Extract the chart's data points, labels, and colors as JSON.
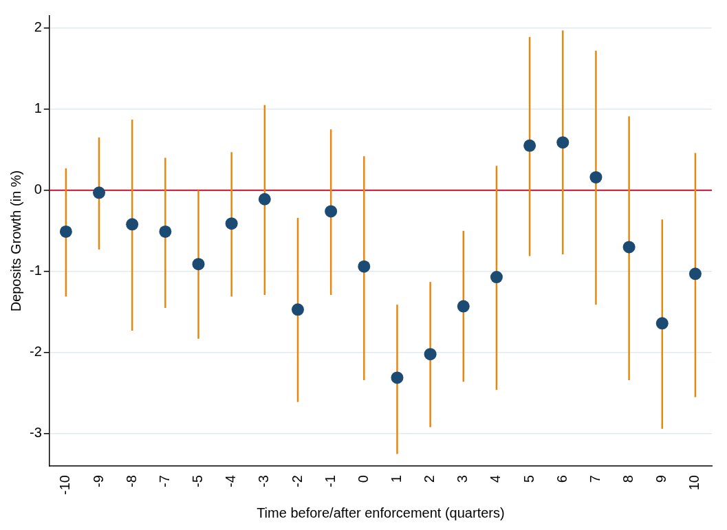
{
  "chart_data": {
    "type": "scatter",
    "xlabel": "Time before/after enforcement (quarters)",
    "ylabel": "Deposits Growth (in %)",
    "categories": [
      "-10",
      "-9",
      "-8",
      "-7",
      "-5",
      "-4",
      "-3",
      "-2",
      "-1",
      "0",
      "1",
      "2",
      "3",
      "4",
      "5",
      "6",
      "7",
      "8",
      "9",
      "10"
    ],
    "series": [
      {
        "color": "#1b4a72",
        "values": [
          -0.51,
          -0.03,
          -0.42,
          -0.51,
          -0.91,
          -0.41,
          -0.11,
          -1.47,
          -0.26,
          -0.94,
          -2.31,
          -2.02,
          -1.43,
          -1.07,
          0.55,
          0.59,
          0.16,
          -0.7,
          -1.64,
          -1.03
        ],
        "errors": [
          [
            -1.31,
            0.27
          ],
          [
            -0.73,
            0.65
          ],
          [
            -1.73,
            0.87
          ],
          [
            -1.45,
            0.4
          ],
          [
            -1.83,
            0
          ],
          [
            -1.31,
            0.47
          ],
          [
            -1.29,
            1.05
          ],
          [
            -2.61,
            -0.34
          ],
          [
            -1.29,
            0.75
          ],
          [
            -2.34,
            0.42
          ],
          [
            -3.25,
            -1.41
          ],
          [
            -2.92,
            -1.13
          ],
          [
            -2.36,
            -0.5
          ],
          [
            -2.46,
            0.3
          ],
          [
            -0.81,
            1.89
          ],
          [
            -0.79,
            1.97
          ],
          [
            -1.41,
            1.72
          ],
          [
            -2.34,
            0.91
          ],
          [
            -2.94,
            -0.36
          ],
          [
            -2.55,
            0.46
          ]
        ]
      }
    ],
    "ylim": [
      -3.4,
      2.15
    ],
    "yticks": [
      -3,
      -2,
      -1,
      0,
      1,
      2
    ],
    "ref_lines": [
      {
        "axis": "y",
        "value": 0,
        "color": "#c8102e"
      }
    ],
    "grid": "y",
    "marker": "circle",
    "legend": false
  }
}
